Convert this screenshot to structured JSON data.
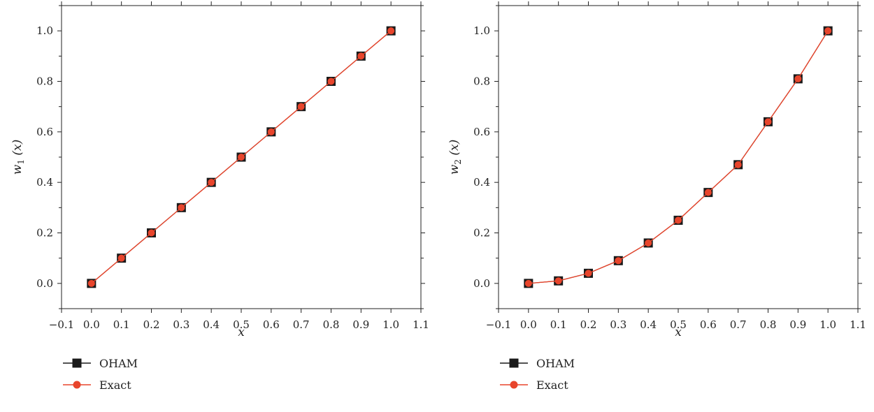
{
  "chart_data": [
    {
      "type": "line",
      "x": [
        0.0,
        0.1,
        0.2,
        0.3,
        0.4,
        0.5,
        0.6,
        0.7,
        0.8,
        0.9,
        1.0
      ],
      "series": [
        {
          "name": "OHAM",
          "values": [
            0.0,
            0.1,
            0.2,
            0.3,
            0.4,
            0.5,
            0.6,
            0.7,
            0.8,
            0.9,
            1.0
          ],
          "marker": "square",
          "color": "#1a1a1a"
        },
        {
          "name": "Exact",
          "values": [
            0.0,
            0.1,
            0.2,
            0.3,
            0.4,
            0.5,
            0.6,
            0.7,
            0.8,
            0.9,
            1.0
          ],
          "marker": "circle",
          "color": "#e8452c"
        }
      ],
      "xlabel": "x",
      "ylabel": {
        "base": "w",
        "sub": "1",
        "arg": "(x)"
      },
      "xlim": [
        -0.1,
        1.1
      ],
      "ylim": [
        -0.1,
        1.1
      ],
      "xticks": [
        "−0.1",
        "0.0",
        "0.1",
        "0.2",
        "0.3",
        "0.4",
        "0.5",
        "0.6",
        "0.7",
        "0.8",
        "0.9",
        "1.0",
        "1.1"
      ],
      "yticks": [
        "0.0",
        "0.2",
        "0.4",
        "0.6",
        "0.8",
        "1.0"
      ],
      "grid": false,
      "legend_position": "below"
    },
    {
      "type": "line",
      "x": [
        0.0,
        0.1,
        0.2,
        0.3,
        0.4,
        0.5,
        0.6,
        0.7,
        0.8,
        0.9,
        1.0
      ],
      "series": [
        {
          "name": "OHAM",
          "values": [
            0.0,
            0.01,
            0.04,
            0.09,
            0.16,
            0.25,
            0.36,
            0.47,
            0.64,
            0.81,
            1.0
          ],
          "marker": "square",
          "color": "#1a1a1a"
        },
        {
          "name": "Exact",
          "values": [
            0.0,
            0.01,
            0.04,
            0.09,
            0.16,
            0.25,
            0.36,
            0.47,
            0.64,
            0.81,
            1.0
          ],
          "marker": "circle",
          "color": "#e8452c"
        }
      ],
      "xlabel": "x",
      "ylabel": {
        "base": "w",
        "sub": "2",
        "arg": "(x)"
      },
      "xlim": [
        -0.1,
        1.1
      ],
      "ylim": [
        -0.1,
        1.1
      ],
      "xticks": [
        "−0.1",
        "0.0",
        "0.1",
        "0.2",
        "0.3",
        "0.4",
        "0.5",
        "0.6",
        "0.7",
        "0.8",
        "0.9",
        "1.0",
        "1.1"
      ],
      "yticks": [
        "0.0",
        "0.2",
        "0.4",
        "0.6",
        "0.8",
        "1.0"
      ],
      "grid": false,
      "legend_position": "below"
    }
  ]
}
